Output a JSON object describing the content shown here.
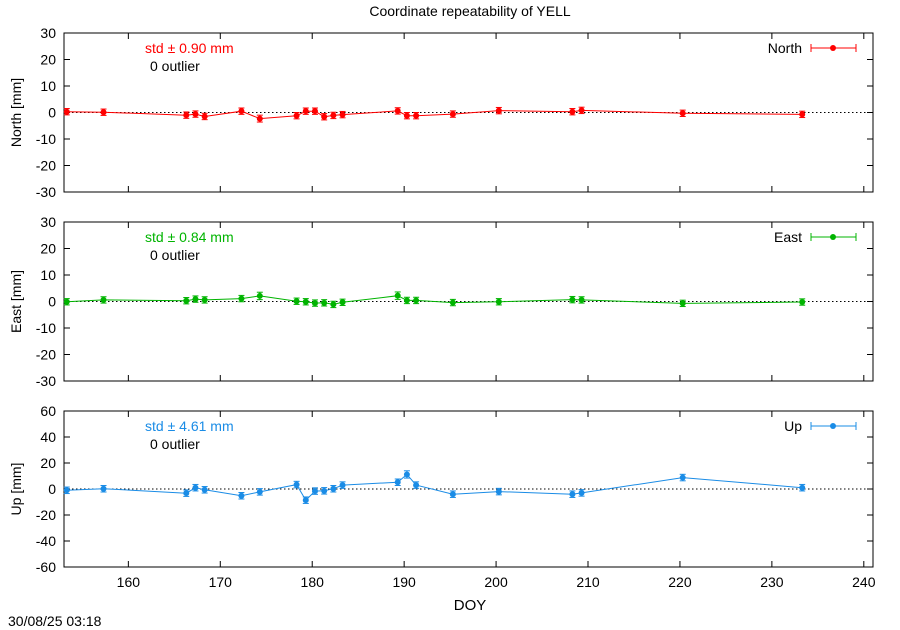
{
  "title": "Coordinate repeatability of YELL",
  "timestamp": "30/08/25 03:18",
  "x_axis": {
    "label": "DOY",
    "range": [
      153,
      241
    ],
    "ticks": [
      160,
      170,
      180,
      190,
      200,
      210,
      220,
      230,
      240
    ]
  },
  "chart_data": [
    {
      "type": "scatter",
      "panel": "north",
      "series": [
        {
          "name": "North",
          "color": "#ff0000",
          "x": [
            153.3,
            157.3,
            166.3,
            167.3,
            168.3,
            172.3,
            174.3,
            178.3,
            179.3,
            180.3,
            181.3,
            182.3,
            183.3,
            189.3,
            190.3,
            191.3,
            195.3,
            200.3,
            208.3,
            209.3,
            220.3,
            233.3
          ],
          "y": [
            0.3,
            0.1,
            -1.0,
            -0.6,
            -1.5,
            0.5,
            -2.3,
            -1.2,
            0.5,
            0.5,
            -1.6,
            -1.1,
            -0.8,
            0.6,
            -1.2,
            -1.2,
            -0.6,
            0.7,
            0.3,
            0.8,
            -0.3,
            -0.7
          ],
          "err": [
            1.2,
            1.2,
            1.2,
            1.2,
            1.2,
            1.2,
            1.3,
            1.2,
            1.2,
            1.2,
            1.2,
            1.2,
            1.2,
            1.2,
            1.2,
            1.2,
            1.2,
            1.2,
            1.2,
            1.2,
            1.2,
            1.2
          ]
        }
      ],
      "ylabel": "North [mm]",
      "ylim": [
        -30,
        30
      ],
      "yticks": [
        -30,
        -20,
        -10,
        0,
        10,
        20,
        30
      ],
      "std_text": "std ± 0.90 mm",
      "outlier_text": "0 outlier",
      "legend": "top-right",
      "zero_line": true
    },
    {
      "type": "scatter",
      "panel": "east",
      "series": [
        {
          "name": "East",
          "color": "#00b400",
          "x": [
            153.3,
            157.3,
            166.3,
            167.3,
            168.3,
            172.3,
            174.3,
            178.3,
            179.3,
            180.3,
            181.3,
            182.3,
            183.3,
            189.3,
            190.3,
            191.3,
            195.3,
            200.3,
            208.3,
            209.3,
            220.3,
            233.3
          ],
          "y": [
            -0.1,
            0.6,
            0.3,
            0.9,
            0.6,
            1.1,
            2.1,
            0.1,
            -0.1,
            -0.6,
            -0.5,
            -1.1,
            -0.3,
            2.2,
            0.4,
            0.4,
            -0.4,
            -0.1,
            0.7,
            0.6,
            -0.7,
            -0.2
          ],
          "err": [
            1.2,
            1.2,
            1.2,
            1.2,
            1.2,
            1.2,
            1.4,
            1.2,
            1.2,
            1.2,
            1.2,
            1.2,
            1.2,
            1.4,
            1.2,
            1.2,
            1.2,
            1.2,
            1.2,
            1.2,
            1.2,
            1.2
          ]
        }
      ],
      "ylabel": "East [mm]",
      "ylim": [
        -30,
        30
      ],
      "yticks": [
        -30,
        -20,
        -10,
        0,
        10,
        20,
        30
      ],
      "std_text": "std ± 0.84 mm",
      "outlier_text": "0 outlier",
      "legend": "top-right",
      "zero_line": true
    },
    {
      "type": "scatter",
      "panel": "up",
      "series": [
        {
          "name": "Up",
          "color": "#1a8ce6",
          "x": [
            153.3,
            157.3,
            166.3,
            167.3,
            168.3,
            172.3,
            174.3,
            178.3,
            179.3,
            180.3,
            181.3,
            182.3,
            183.3,
            189.3,
            190.3,
            191.3,
            195.3,
            200.3,
            208.3,
            209.3,
            220.3,
            233.3
          ],
          "y": [
            -1.0,
            0.2,
            -3.2,
            1.0,
            -0.6,
            -5.2,
            -2.2,
            3.4,
            -8.6,
            -1.6,
            -1.4,
            0.2,
            3.0,
            5.2,
            11.2,
            3.0,
            -4.0,
            -2.0,
            -4.0,
            -3.0,
            8.8,
            1.0
          ],
          "err": [
            2.5,
            2.5,
            2.5,
            2.5,
            2.5,
            2.5,
            2.5,
            2.5,
            2.5,
            2.5,
            2.5,
            2.5,
            2.5,
            2.5,
            2.8,
            2.5,
            2.5,
            2.5,
            2.5,
            2.5,
            2.5,
            2.5
          ]
        }
      ],
      "ylabel": "Up [mm]",
      "ylim": [
        -60,
        60
      ],
      "yticks": [
        -60,
        -40,
        -20,
        0,
        20,
        40,
        60
      ],
      "std_text": "std ± 4.61 mm",
      "outlier_text": "0 outlier",
      "legend": "top-right",
      "zero_line": true
    }
  ]
}
